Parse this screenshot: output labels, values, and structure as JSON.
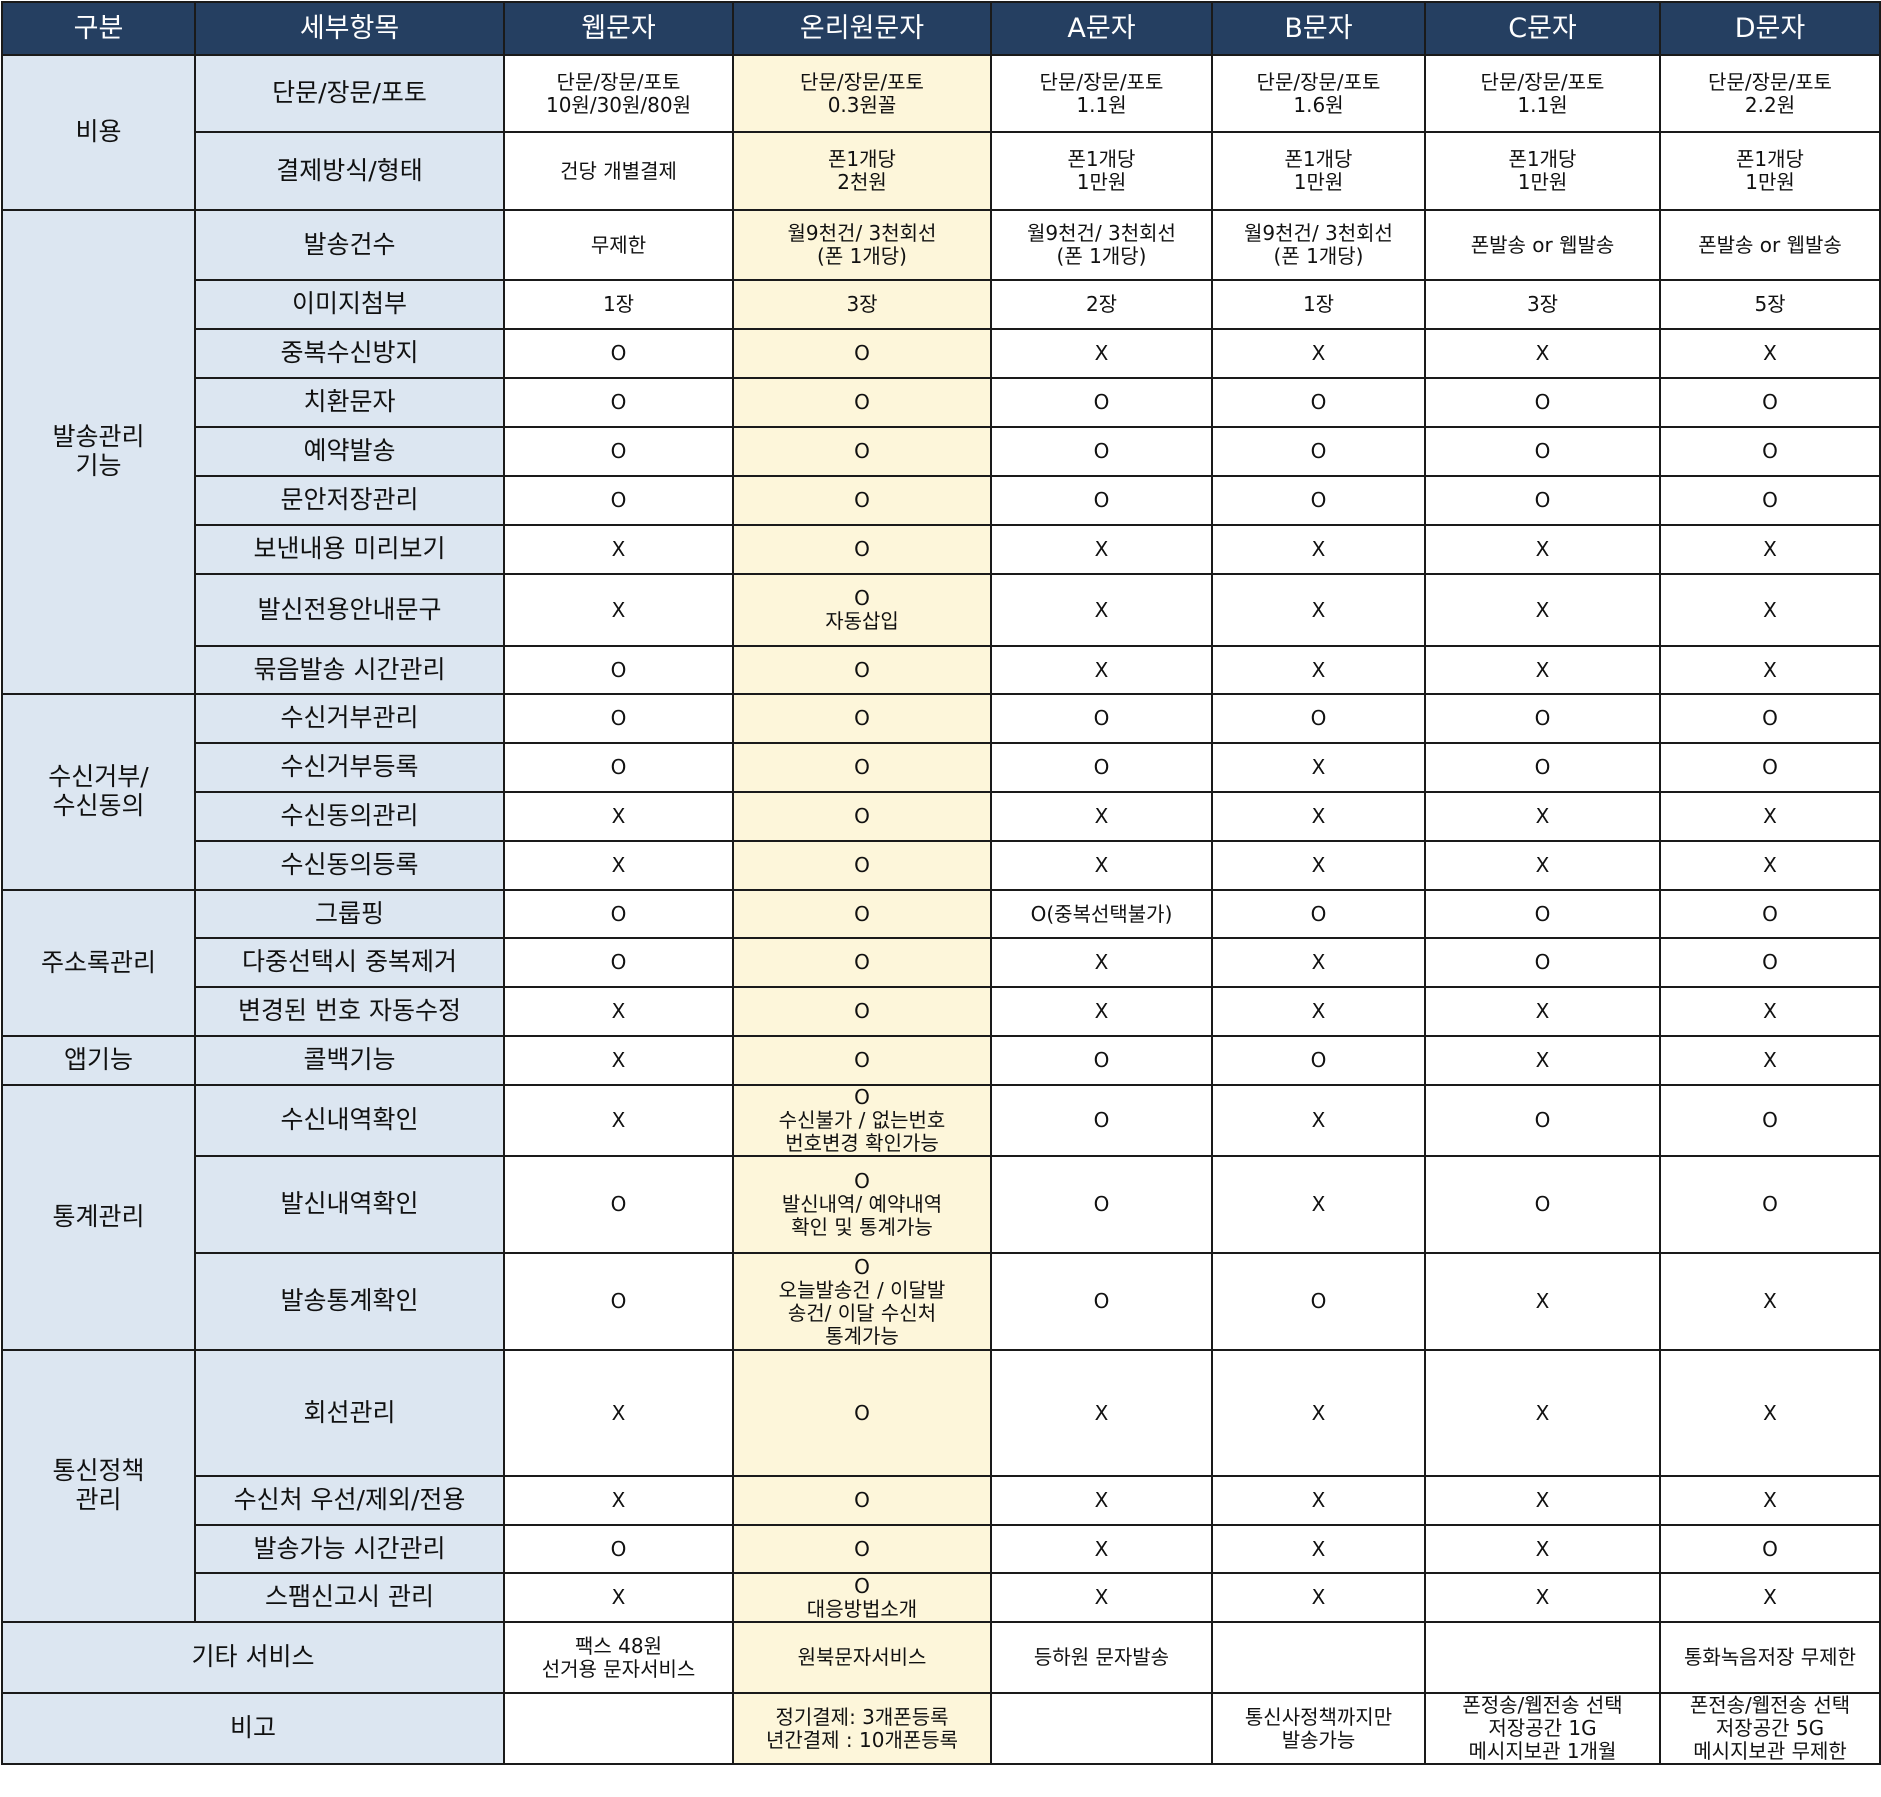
{
  "colors": {
    "header_bg": "#253f61",
    "category_bg": "#dce6f1",
    "highlight_bg": "#fdf6da"
  },
  "headers": [
    "구분",
    "세부항목",
    "웹문자",
    "온리원문자",
    "A문자",
    "B문자",
    "C문자",
    "D문자"
  ],
  "groups": [
    {
      "category": "비용",
      "rows": [
        {
          "item": "단문/장문/포토",
          "values": [
            "단문/장문/포토\n10원/30원/80원",
            "단문/장문/포토\n0.3원꼴",
            "단문/장문/포토\n1.1원",
            "단문/장문/포토\n1.6원",
            "단문/장문/포토\n1.1원",
            "단문/장문/포토\n2.2원"
          ]
        },
        {
          "item": "결제방식/형태",
          "values": [
            "건당 개별결제",
            "폰1개당\n2천원",
            "폰1개당\n1만원",
            "폰1개당\n1만원",
            "폰1개당\n1만원",
            "폰1개당\n1만원"
          ]
        }
      ]
    },
    {
      "category": "발송관리\n기능",
      "rows": [
        {
          "item": "발송건수",
          "values": [
            "무제한",
            "월9천건/ 3천회선\n(폰 1개당)",
            "월9천건/ 3천회선\n(폰 1개당)",
            "월9천건/ 3천회선\n(폰 1개당)",
            "폰발송 or 웹발송",
            "폰발송 or 웹발송"
          ]
        },
        {
          "item": "이미지첨부",
          "values": [
            "1장",
            "3장",
            "2장",
            "1장",
            "3장",
            "5장"
          ]
        },
        {
          "item": "중복수신방지",
          "values": [
            "O",
            "O",
            "X",
            "X",
            "X",
            "X"
          ]
        },
        {
          "item": "치환문자",
          "values": [
            "O",
            "O",
            "O",
            "O",
            "O",
            "O"
          ]
        },
        {
          "item": "예약발송",
          "values": [
            "O",
            "O",
            "O",
            "O",
            "O",
            "O"
          ]
        },
        {
          "item": "문안저장관리",
          "values": [
            "O",
            "O",
            "O",
            "O",
            "O",
            "O"
          ]
        },
        {
          "item": "보낸내용 미리보기",
          "values": [
            "X",
            "O",
            "X",
            "X",
            "X",
            "X"
          ]
        },
        {
          "item": "발신전용안내문구",
          "values": [
            "X",
            "O\n자동삽입",
            "X",
            "X",
            "X",
            "X"
          ]
        },
        {
          "item": "묶음발송 시간관리",
          "values": [
            "O",
            "O",
            "X",
            "X",
            "X",
            "X"
          ]
        }
      ]
    },
    {
      "category": "수신거부/\n수신동의",
      "rows": [
        {
          "item": "수신거부관리",
          "values": [
            "O",
            "O",
            "O",
            "O",
            "O",
            "O"
          ]
        },
        {
          "item": "수신거부등록",
          "values": [
            "O",
            "O",
            "O",
            "X",
            "O",
            "O"
          ]
        },
        {
          "item": "수신동의관리",
          "values": [
            "X",
            "O",
            "X",
            "X",
            "X",
            "X"
          ]
        },
        {
          "item": "수신동의등록",
          "values": [
            "X",
            "O",
            "X",
            "X",
            "X",
            "X"
          ]
        }
      ]
    },
    {
      "category": "주소록관리",
      "rows": [
        {
          "item": "그룹핑",
          "values": [
            "O",
            "O",
            "O(중복선택불가)",
            "O",
            "O",
            "O"
          ]
        },
        {
          "item": "다중선택시 중복제거",
          "values": [
            "O",
            "O",
            "X",
            "X",
            "O",
            "O"
          ]
        },
        {
          "item": "변경된 번호 자동수정",
          "values": [
            "X",
            "O",
            "X",
            "X",
            "X",
            "X"
          ]
        }
      ]
    },
    {
      "category": "앱기능",
      "rows": [
        {
          "item": "콜백기능",
          "values": [
            "X",
            "O",
            "O",
            "O",
            "X",
            "X"
          ]
        }
      ]
    },
    {
      "category": "통계관리",
      "rows": [
        {
          "item": "수신내역확인",
          "values": [
            "X",
            "O\n수신불가 / 없는번호\n번호변경 확인가능",
            "O",
            "X",
            "O",
            "O"
          ]
        },
        {
          "item": "발신내역확인",
          "values": [
            "O",
            "O\n발신내역/ 예약내역\n확인 및 통계가능",
            "O",
            "X",
            "O",
            "O"
          ]
        },
        {
          "item": "발송통계확인",
          "values": [
            "O",
            "O\n오늘발송건 / 이달발\n송건/ 이달 수신처\n통계가능",
            "O",
            "O",
            "X",
            "X"
          ]
        }
      ]
    },
    {
      "category": "통신정책\n관리",
      "rows": [
        {
          "item": "회선관리",
          "values": [
            "X",
            "O",
            "X",
            "X",
            "X",
            "X"
          ]
        },
        {
          "item": "수신처 우선/제외/전용",
          "values": [
            "X",
            "O",
            "X",
            "X",
            "X",
            "X"
          ]
        },
        {
          "item": "발송가능 시간관리",
          "values": [
            "O",
            "O",
            "X",
            "X",
            "X",
            "O"
          ]
        },
        {
          "item": "스팸신고시 관리",
          "values": [
            "X",
            "O\n대응방법소개",
            "X",
            "X",
            "X",
            "X"
          ]
        }
      ]
    }
  ],
  "footer_rows": [
    {
      "label": "기타 서비스",
      "values": [
        "팩스 48원\n선거용 문자서비스",
        "원북문자서비스",
        "등하원 문자발송",
        "",
        "",
        "통화녹음저장 무제한"
      ]
    },
    {
      "label": "비고",
      "values": [
        "",
        "정기결제: 3개폰등록\n년간결제 : 10개폰등록",
        "",
        "통신사정책까지만\n발송가능",
        "폰정송/웹전송 선택\n저장공간 1G\n메시지보관 1개월",
        "폰전송/웹전송 선택\n저장공간 5G\n메시지보관 무제한"
      ]
    }
  ]
}
